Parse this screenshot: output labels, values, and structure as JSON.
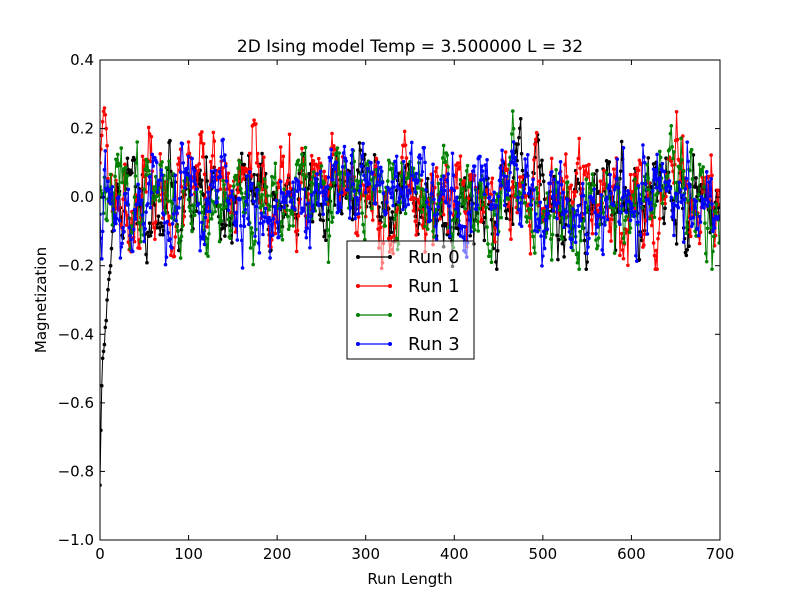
{
  "chart_data": {
    "type": "line",
    "title": "2D Ising model Temp = 3.500000 L = 32",
    "xlabel": "Run Length",
    "ylabel": "Magnetization",
    "xlim": [
      0,
      700
    ],
    "ylim": [
      -1.0,
      0.4
    ],
    "xticks": [
      0,
      100,
      200,
      300,
      400,
      500,
      600,
      700
    ],
    "xtick_labels": [
      "0",
      "100",
      "200",
      "300",
      "400",
      "500",
      "600",
      "700"
    ],
    "yticks": [
      -1.0,
      -0.8,
      -0.6,
      -0.4,
      -0.2,
      0.0,
      0.2,
      0.4
    ],
    "ytick_labels": [
      "−1.0",
      "−0.8",
      "−0.6",
      "−0.4",
      "−0.2",
      "0.0",
      "0.2",
      "0.4"
    ],
    "grid": false,
    "legend_position": "center",
    "marker": "point",
    "n_points": 700,
    "series": [
      {
        "name": "Run 0",
        "color": "#000000",
        "start": [
          -0.84,
          -0.68,
          -0.55,
          -0.47,
          -0.45,
          -0.43,
          -0.38,
          -0.36,
          -0.3,
          -0.27,
          -0.24,
          -0.22,
          -0.2,
          -0.15,
          -0.1,
          -0.08,
          -0.06
        ],
        "mean": 0.0,
        "sigma": 0.075,
        "phi": 0.75,
        "seed": 11
      },
      {
        "name": "Run 1",
        "color": "#ff0000",
        "start": [
          0.1,
          0.14,
          0.18,
          0.22,
          0.25,
          0.26,
          0.24,
          0.2,
          0.15
        ],
        "mean": 0.0,
        "sigma": 0.08,
        "phi": 0.75,
        "seed": 23
      },
      {
        "name": "Run 2",
        "color": "#008000",
        "start": [
          0.03,
          0.02,
          0.0,
          0.01
        ],
        "mean": 0.0,
        "sigma": 0.075,
        "phi": 0.75,
        "seed": 37
      },
      {
        "name": "Run 3",
        "color": "#0000ff",
        "start": [
          -0.05,
          -0.12,
          -0.18,
          -0.1,
          0.0,
          0.08
        ],
        "mean": 0.0,
        "sigma": 0.08,
        "phi": 0.75,
        "seed": 53
      }
    ]
  }
}
